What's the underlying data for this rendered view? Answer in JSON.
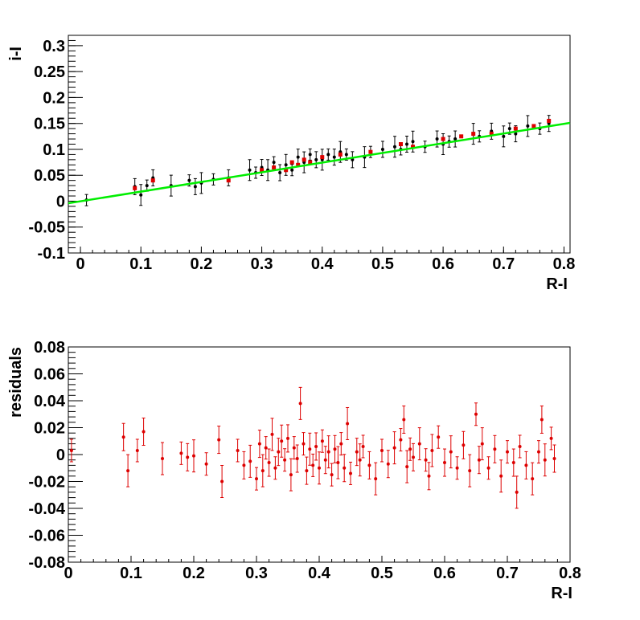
{
  "chart_data": [
    {
      "type": "scatter",
      "xlabel": "R-I",
      "ylabel": "i-I",
      "xlim": [
        -0.02,
        0.81
      ],
      "ylim": [
        -0.1,
        0.32
      ],
      "x_ticks": [
        "0",
        "0.1",
        "0.2",
        "0.3",
        "0.4",
        "0.5",
        "0.6",
        "0.7",
        "0.8"
      ],
      "y_ticks": [
        "-0.1",
        "-0.05",
        "0",
        "0.05",
        "0.1",
        "0.15",
        "0.2",
        "0.25",
        "0.3"
      ],
      "grid": false,
      "fit_line": {
        "x": [
          -0.02,
          0.81
        ],
        "y": [
          -0.004,
          0.151
        ],
        "color": "#00ee00"
      },
      "series": [
        {
          "color": "#000000",
          "marker": "star-with-error-bars",
          "points": [
            [
              0.01,
              0.002
            ],
            [
              0.09,
              0.028
            ],
            [
              0.1,
              0.012
            ],
            [
              0.11,
              0.03
            ],
            [
              0.12,
              0.045
            ],
            [
              0.15,
              0.03
            ],
            [
              0.18,
              0.04
            ],
            [
              0.19,
              0.028
            ],
            [
              0.2,
              0.035
            ],
            [
              0.22,
              0.042
            ],
            [
              0.245,
              0.045
            ],
            [
              0.28,
              0.06
            ],
            [
              0.29,
              0.055
            ],
            [
              0.3,
              0.065
            ],
            [
              0.31,
              0.06
            ],
            [
              0.32,
              0.075
            ],
            [
              0.33,
              0.055
            ],
            [
              0.34,
              0.07
            ],
            [
              0.35,
              0.06
            ],
            [
              0.36,
              0.085
            ],
            [
              0.37,
              0.075
            ],
            [
              0.38,
              0.09
            ],
            [
              0.39,
              0.08
            ],
            [
              0.4,
              0.08
            ],
            [
              0.41,
              0.09
            ],
            [
              0.42,
              0.085
            ],
            [
              0.43,
              0.095
            ],
            [
              0.44,
              0.09
            ],
            [
              0.45,
              0.08
            ],
            [
              0.47,
              0.085
            ],
            [
              0.48,
              0.095
            ],
            [
              0.5,
              0.1
            ],
            [
              0.52,
              0.105
            ],
            [
              0.53,
              0.1
            ],
            [
              0.54,
              0.11
            ],
            [
              0.55,
              0.115
            ],
            [
              0.57,
              0.105
            ],
            [
              0.59,
              0.12
            ],
            [
              0.6,
              0.11
            ],
            [
              0.61,
              0.115
            ],
            [
              0.62,
              0.12
            ],
            [
              0.65,
              0.13
            ],
            [
              0.66,
              0.125
            ],
            [
              0.68,
              0.135
            ],
            [
              0.7,
              0.125
            ],
            [
              0.71,
              0.14
            ],
            [
              0.72,
              0.13
            ],
            [
              0.74,
              0.145
            ],
            [
              0.76,
              0.14
            ],
            [
              0.775,
              0.15
            ]
          ]
        },
        {
          "color": "#dd0000",
          "marker": "square",
          "points": [
            [
              0.09,
              0.025
            ],
            [
              0.12,
              0.04
            ],
            [
              0.245,
              0.04
            ],
            [
              0.3,
              0.06
            ],
            [
              0.32,
              0.065
            ],
            [
              0.34,
              0.06
            ],
            [
              0.35,
              0.075
            ],
            [
              0.36,
              0.07
            ],
            [
              0.37,
              0.08
            ],
            [
              0.38,
              0.075
            ],
            [
              0.4,
              0.085
            ],
            [
              0.43,
              0.09
            ],
            [
              0.48,
              0.095
            ],
            [
              0.53,
              0.11
            ],
            [
              0.55,
              0.105
            ],
            [
              0.6,
              0.12
            ],
            [
              0.63,
              0.125
            ],
            [
              0.65,
              0.13
            ],
            [
              0.68,
              0.13
            ],
            [
              0.72,
              0.14
            ],
            [
              0.75,
              0.145
            ],
            [
              0.775,
              0.155
            ]
          ]
        }
      ]
    },
    {
      "type": "scatter",
      "xlabel": "R-I",
      "ylabel": "residuals",
      "xlim": [
        0.0,
        0.8
      ],
      "ylim": [
        -0.08,
        0.08
      ],
      "x_ticks": [
        "0",
        "0.1",
        "0.2",
        "0.3",
        "0.4",
        "0.5",
        "0.6",
        "0.7",
        "0.8"
      ],
      "y_ticks": [
        "-0.08",
        "-0.06",
        "-0.04",
        "-0.02",
        "0",
        "0.02",
        "0.04",
        "0.06",
        "0.08"
      ],
      "grid": false,
      "series": [
        {
          "color": "#dd0000",
          "marker": "dot-with-error-bars",
          "points": [
            [
              0.005,
              0.003
            ],
            [
              0.088,
              0.013
            ],
            [
              0.095,
              -0.012
            ],
            [
              0.11,
              0.003
            ],
            [
              0.12,
              0.017
            ],
            [
              0.15,
              -0.003
            ],
            [
              0.18,
              0.001
            ],
            [
              0.19,
              -0.002
            ],
            [
              0.2,
              -0.001
            ],
            [
              0.22,
              -0.007
            ],
            [
              0.24,
              0.011
            ],
            [
              0.245,
              -0.02
            ],
            [
              0.27,
              0.003
            ],
            [
              0.28,
              -0.008
            ],
            [
              0.29,
              -0.005
            ],
            [
              0.3,
              -0.018
            ],
            [
              0.305,
              0.008
            ],
            [
              0.31,
              -0.012
            ],
            [
              0.315,
              0.005
            ],
            [
              0.32,
              -0.006
            ],
            [
              0.325,
              0.015
            ],
            [
              0.33,
              -0.01
            ],
            [
              0.335,
              0.002
            ],
            [
              0.34,
              0.01
            ],
            [
              0.345,
              -0.004
            ],
            [
              0.35,
              0.012
            ],
            [
              0.355,
              -0.015
            ],
            [
              0.36,
              0.005
            ],
            [
              0.365,
              -0.003
            ],
            [
              0.37,
              0.038
            ],
            [
              0.375,
              0.008
            ],
            [
              0.38,
              -0.012
            ],
            [
              0.385,
              0.004
            ],
            [
              0.39,
              -0.008
            ],
            [
              0.395,
              0.006
            ],
            [
              0.4,
              -0.01
            ],
            [
              0.405,
              0.01
            ],
            [
              0.41,
              -0.004
            ],
            [
              0.415,
              0.002
            ],
            [
              0.42,
              -0.015
            ],
            [
              0.425,
              0.004
            ],
            [
              0.43,
              -0.006
            ],
            [
              0.435,
              0.008
            ],
            [
              0.44,
              -0.01
            ],
            [
              0.445,
              0.023
            ],
            [
              0.45,
              -0.014
            ],
            [
              0.46,
              0.002
            ],
            [
              0.465,
              -0.004
            ],
            [
              0.47,
              0.006
            ],
            [
              0.48,
              -0.008
            ],
            [
              0.49,
              -0.018
            ],
            [
              0.5,
              0.003
            ],
            [
              0.51,
              -0.007
            ],
            [
              0.52,
              0.005
            ],
            [
              0.53,
              0.011
            ],
            [
              0.535,
              0.026
            ],
            [
              0.54,
              -0.009
            ],
            [
              0.545,
              0.004
            ],
            [
              0.55,
              -0.002
            ],
            [
              0.56,
              0.008
            ],
            [
              0.57,
              -0.004
            ],
            [
              0.575,
              -0.016
            ],
            [
              0.58,
              0.003
            ],
            [
              0.59,
              0.013
            ],
            [
              0.6,
              -0.006
            ],
            [
              0.61,
              0.002
            ],
            [
              0.62,
              -0.01
            ],
            [
              0.63,
              0.007
            ],
            [
              0.64,
              -0.012
            ],
            [
              0.65,
              0.03
            ],
            [
              0.655,
              -0.004
            ],
            [
              0.66,
              0.008
            ],
            [
              0.67,
              -0.01
            ],
            [
              0.68,
              0.004
            ],
            [
              0.69,
              -0.016
            ],
            [
              0.7,
              0.002
            ],
            [
              0.71,
              -0.006
            ],
            [
              0.715,
              -0.028
            ],
            [
              0.72,
              0.006
            ],
            [
              0.73,
              -0.008
            ],
            [
              0.74,
              -0.018
            ],
            [
              0.75,
              0.002
            ],
            [
              0.755,
              0.026
            ],
            [
              0.76,
              -0.004
            ],
            [
              0.77,
              0.012
            ],
            [
              0.775,
              -0.003
            ]
          ]
        }
      ]
    }
  ]
}
